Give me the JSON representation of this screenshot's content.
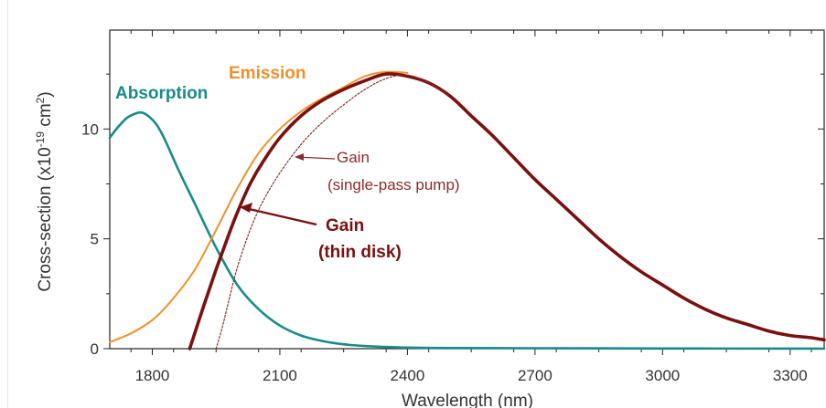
{
  "chart_data": {
    "type": "line",
    "xlabel": "Wavelength (nm)",
    "ylabel": {
      "prefix": "Cross-section (x10",
      "sup1": "-19",
      "mid": " cm",
      "sup2": "2",
      "suffix": ")"
    },
    "xlim": [
      1700,
      3380
    ],
    "ylim": [
      0,
      14.5
    ],
    "xticks": [
      1800,
      2100,
      2400,
      2700,
      3000,
      3300
    ],
    "yticks": [
      0,
      5,
      10
    ],
    "xtick_labels": [
      "1800",
      "2100",
      "2400",
      "2700",
      "3000",
      "3300"
    ],
    "ytick_labels": [
      "0",
      "5",
      "10"
    ],
    "series": [
      {
        "name": "Absorption",
        "color": "#1a8a8a",
        "style": "solid",
        "x": [
          1700,
          1720,
          1740,
          1760,
          1775,
          1790,
          1810,
          1830,
          1860,
          1900,
          1950,
          2000,
          2050,
          2100,
          2150,
          2200,
          2250,
          2300,
          2350,
          2400,
          2500,
          2700,
          3000,
          3380
        ],
        "y": [
          9.6,
          10.1,
          10.5,
          10.7,
          10.75,
          10.6,
          10.2,
          9.5,
          8.2,
          6.6,
          4.6,
          2.9,
          1.8,
          1.05,
          0.6,
          0.35,
          0.2,
          0.12,
          0.08,
          0.05,
          0.03,
          0.02,
          0.01,
          0.0
        ]
      },
      {
        "name": "Emission",
        "color": "#f0902a",
        "style": "solid",
        "x": [
          1700,
          1750,
          1800,
          1850,
          1900,
          1950,
          2000,
          2050,
          2100,
          2150,
          2200,
          2250,
          2300,
          2350,
          2400
        ],
        "y": [
          0.3,
          0.7,
          1.3,
          2.3,
          3.6,
          5.4,
          7.3,
          8.9,
          10.0,
          10.8,
          11.4,
          11.9,
          12.4,
          12.6,
          12.55
        ]
      },
      {
        "name": "Gain (thin disk)",
        "color": "#7a1010",
        "style": "solid",
        "x": [
          1888,
          1920,
          1950,
          1980,
          2000,
          2030,
          2060,
          2100,
          2150,
          2200,
          2250,
          2300,
          2350,
          2400,
          2450,
          2500,
          2550,
          2600,
          2650,
          2700,
          2750,
          2800,
          2850,
          2900,
          2950,
          3000,
          3050,
          3100,
          3150,
          3200,
          3250,
          3300,
          3350,
          3380
        ],
        "y": [
          0.0,
          1.9,
          3.6,
          5.2,
          6.2,
          7.5,
          8.5,
          9.6,
          10.6,
          11.3,
          11.8,
          12.2,
          12.5,
          12.4,
          12.1,
          11.5,
          10.6,
          9.7,
          8.7,
          7.7,
          6.8,
          5.9,
          5.0,
          4.2,
          3.5,
          2.9,
          2.3,
          1.8,
          1.4,
          1.1,
          0.8,
          0.6,
          0.5,
          0.4
        ]
      },
      {
        "name": "Gain (single-pass pump)",
        "color": "#8a2b2b",
        "style": "dotted",
        "x": [
          1950,
          1965,
          1980,
          2000,
          2030,
          2060,
          2100,
          2150,
          2200,
          2250,
          2300,
          2350,
          2400,
          2450,
          2500
        ],
        "y": [
          0.0,
          1.0,
          2.2,
          3.7,
          5.4,
          6.7,
          8.0,
          9.3,
          10.3,
          11.1,
          11.8,
          12.3,
          12.45,
          12.1,
          11.5
        ]
      }
    ],
    "annotations": {
      "absorption": "Absorption",
      "emission": "Emission",
      "gain_single_l1": "Gain",
      "gain_single_l2": "(single-pass pump)",
      "gain_thin_l1": "Gain",
      "gain_thin_l2": "(thin disk)"
    },
    "annotation_colors": {
      "absorption": "#1a8a8a",
      "emission": "#f0902a",
      "gain_single": "#8a2b2b",
      "gain_thin": "#7a1010"
    },
    "grid": false,
    "legend": "inline annotations"
  }
}
